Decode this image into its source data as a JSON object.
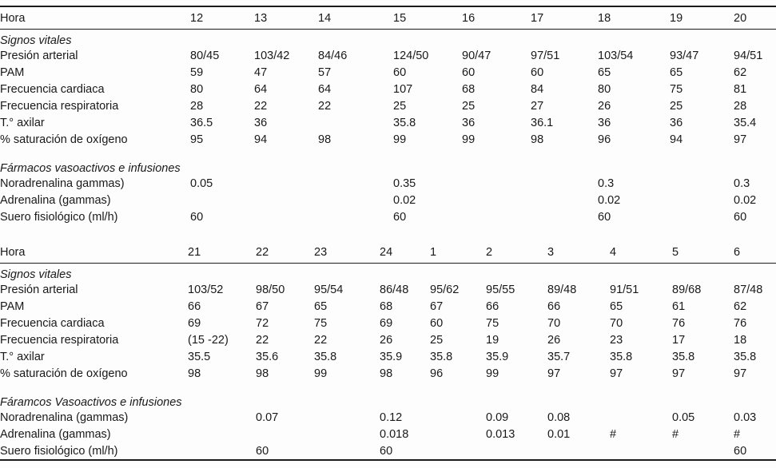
{
  "page": {
    "background": "#fdfdfd",
    "text_color": "#191919",
    "rule_color": "#1c1c1c"
  },
  "tables": [
    {
      "name": "vital-signs-day-hours",
      "hour_header": "Hora",
      "hours": [
        "12",
        "13",
        "14",
        "15",
        "16",
        "17",
        "18",
        "19",
        "20"
      ],
      "sections": [
        {
          "title": "Signos vitales",
          "rows": [
            {
              "label": "Presión arterial",
              "values": [
                "80/45",
                "103/42",
                "84/46",
                "124/50",
                "90/47",
                "97/51",
                "103/54",
                "93/47",
                "94/51"
              ]
            },
            {
              "label": "PAM",
              "values": [
                "59",
                "47",
                "57",
                "60",
                "60",
                "60",
                "65",
                "65",
                "62"
              ]
            },
            {
              "label": "Frecuencia cardiaca",
              "values": [
                "80",
                "64",
                "64",
                "107",
                "68",
                "84",
                "80",
                "75",
                "81"
              ]
            },
            {
              "label": "Frecuencia respiratoria",
              "values": [
                "28",
                "22",
                "22",
                "25",
                "25",
                "27",
                "26",
                "25",
                "28"
              ]
            },
            {
              "label": "T.° axilar",
              "values": [
                "36.5",
                "36",
                "",
                "35.8",
                "36",
                "36.1",
                "36",
                "36",
                "35.4"
              ]
            },
            {
              "label": "% saturación de oxígeno",
              "values": [
                "95",
                "94",
                "98",
                "99",
                "99",
                "98",
                "96",
                "94",
                "97"
              ]
            }
          ]
        },
        {
          "title": "Fármacos vasoactivos e infusiones",
          "rows": [
            {
              "label": "Noradrenalina gammas)",
              "values": [
                "0.05",
                "",
                "",
                "0.35",
                "",
                "",
                "0.3",
                "",
                "0.3"
              ]
            },
            {
              "label": "Adrenalina (gammas)",
              "values": [
                "",
                "",
                "",
                "0.02",
                "",
                "",
                "0.02",
                "",
                "0.02"
              ]
            },
            {
              "label": "Suero fisiológico (ml/h)",
              "values": [
                "60",
                "",
                "",
                "60",
                "",
                "",
                "60",
                "",
                "60"
              ]
            }
          ]
        }
      ]
    },
    {
      "name": "vital-signs-night-hours",
      "hour_header": "Hora",
      "hours": [
        "21",
        "22",
        "23",
        "24",
        "1",
        "2",
        "3",
        "4",
        "5",
        "6"
      ],
      "sections": [
        {
          "title": "Signos vitales",
          "rows": [
            {
              "label": "Presión arterial",
              "values": [
                "103/52",
                "98/50",
                "95/54",
                "86/48",
                "95/62",
                "95/55",
                "89/48",
                "91/51",
                "89/68",
                "87/48"
              ]
            },
            {
              "label": "PAM",
              "values": [
                "66",
                "67",
                "65",
                "68",
                "67",
                "66",
                "66",
                "65",
                "61",
                "62"
              ]
            },
            {
              "label": "Frecuencia cardiaca",
              "values": [
                "69",
                "72",
                "75",
                "69",
                "60",
                "75",
                "70",
                "70",
                "76",
                "76"
              ]
            },
            {
              "label": "Frecuencia respiratoria",
              "values": [
                "(15 -22)",
                "22",
                "22",
                "26",
                "25",
                "19",
                "26",
                "23",
                "17",
                "18"
              ]
            },
            {
              "label": "T.° axilar",
              "values": [
                "35.5",
                "35.6",
                "35.8",
                "35.9",
                "35.8",
                "35.9",
                "35.7",
                "35.8",
                "35.8",
                "35.8"
              ]
            },
            {
              "label": "% saturación de oxígeno",
              "values": [
                "98",
                "98",
                "99",
                "98",
                "96",
                "99",
                "97",
                "97",
                "97",
                "97"
              ]
            }
          ]
        },
        {
          "title": "Fáramcos Vasoactivos e infusiones",
          "rows": [
            {
              "label": "Noradrenalina (gammas)",
              "values": [
                "",
                "0.07",
                "",
                "0.12",
                "",
                "0.09",
                "0.08",
                "",
                "0.05",
                "0.03"
              ]
            },
            {
              "label": "Adrenalina (gammas)",
              "values": [
                "",
                "",
                "",
                "0.018",
                "",
                "0.013",
                "0.01",
                "#",
                "#",
                "#"
              ]
            },
            {
              "label": "Suero fisiológico (ml/h)",
              "values": [
                "",
                "60",
                "",
                "60",
                "",
                "",
                "",
                "",
                "",
                "60"
              ]
            }
          ]
        }
      ]
    }
  ]
}
